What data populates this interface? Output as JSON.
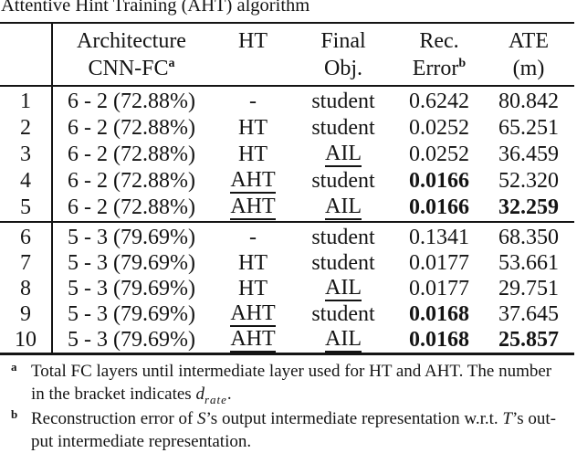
{
  "caption": "Attentive Hint Training (AHT) algorithm",
  "colors": {
    "text": "#141414",
    "rule": "#141414",
    "background": "#ffffff"
  },
  "table": {
    "header": {
      "arch_line1": "Architecture",
      "arch_line2": "CNN-FC",
      "arch_sup": "a",
      "ht": "HT",
      "final_line1": "Final",
      "final_line2": "Obj.",
      "rec_line1": "Rec.",
      "rec_line2": "Error",
      "rec_sup": "b",
      "ate_line1": "ATE",
      "ate_line2": "(m)"
    },
    "rows": [
      {
        "num": "1",
        "arch": "6 - 2 (72.88%)",
        "ht": "-",
        "ht_underline": false,
        "final": "student",
        "final_underline": false,
        "rec": "0.6242",
        "rec_bold": false,
        "ate": "80.842",
        "ate_bold": false
      },
      {
        "num": "2",
        "arch": "6 - 2 (72.88%)",
        "ht": "HT",
        "ht_underline": false,
        "final": "student",
        "final_underline": false,
        "rec": "0.0252",
        "rec_bold": false,
        "ate": "65.251",
        "ate_bold": false
      },
      {
        "num": "3",
        "arch": "6 - 2 (72.88%)",
        "ht": "HT",
        "ht_underline": false,
        "final": "AIL",
        "final_underline": true,
        "rec": "0.0252",
        "rec_bold": false,
        "ate": "36.459",
        "ate_bold": false
      },
      {
        "num": "4",
        "arch": "6 - 2 (72.88%)",
        "ht": "AHT",
        "ht_underline": true,
        "final": "student",
        "final_underline": false,
        "rec": "0.0166",
        "rec_bold": true,
        "ate": "52.320",
        "ate_bold": false
      },
      {
        "num": "5",
        "arch": "6 - 2 (72.88%)",
        "ht": "AHT",
        "ht_underline": true,
        "final": "AIL",
        "final_underline": true,
        "rec": "0.0166",
        "rec_bold": true,
        "ate": "32.259",
        "ate_bold": true
      },
      {
        "num": "6",
        "arch": "5 - 3 (79.69%)",
        "ht": "-",
        "ht_underline": false,
        "final": "student",
        "final_underline": false,
        "rec": "0.1341",
        "rec_bold": false,
        "ate": "68.350",
        "ate_bold": false
      },
      {
        "num": "7",
        "arch": "5 - 3 (79.69%)",
        "ht": "HT",
        "ht_underline": false,
        "final": "student",
        "final_underline": false,
        "rec": "0.0177",
        "rec_bold": false,
        "ate": "53.661",
        "ate_bold": false
      },
      {
        "num": "8",
        "arch": "5 - 3 (79.69%)",
        "ht": "HT",
        "ht_underline": false,
        "final": "AIL",
        "final_underline": true,
        "rec": "0.0177",
        "rec_bold": false,
        "ate": "29.751",
        "ate_bold": false
      },
      {
        "num": "9",
        "arch": "5 - 3 (79.69%)",
        "ht": "AHT",
        "ht_underline": true,
        "final": "student",
        "final_underline": false,
        "rec": "0.0168",
        "rec_bold": true,
        "ate": "37.645",
        "ate_bold": false
      },
      {
        "num": "10",
        "arch": "5 - 3 (79.69%)",
        "ht": "AHT",
        "ht_underline": true,
        "final": "AIL",
        "final_underline": true,
        "rec": "0.0168",
        "rec_bold": true,
        "ate": "25.857",
        "ate_bold": true
      }
    ]
  },
  "footnotes": {
    "a": {
      "marker": "a",
      "line1": "Total FC layers until intermediate layer used for HT and AHT. The number",
      "line2_prefix": "in the bracket indicates ",
      "d": "d",
      "d_sub": "rate",
      "line2_suffix": "."
    },
    "b": {
      "marker": "b",
      "l1_s1": "Reconstruction error of ",
      "l1_S": "S",
      "l1_s2": "’s output intermediate representation w.r.t. ",
      "l1_T": "T",
      "l1_s3": "’s out-",
      "line2": "put intermediate representation."
    }
  }
}
